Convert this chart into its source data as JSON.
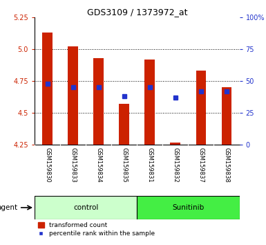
{
  "title": "GDS3109 / 1373972_at",
  "samples": [
    "GSM159830",
    "GSM159833",
    "GSM159834",
    "GSM159835",
    "GSM159831",
    "GSM159832",
    "GSM159837",
    "GSM159838"
  ],
  "bar_values": [
    5.13,
    5.02,
    4.93,
    4.57,
    4.92,
    4.27,
    4.83,
    4.7
  ],
  "bar_base": 4.25,
  "dot_values": [
    4.73,
    4.7,
    4.7,
    4.63,
    4.7,
    4.62,
    4.67,
    4.67
  ],
  "ylim_left": [
    4.25,
    5.25
  ],
  "ylim_right": [
    0,
    100
  ],
  "yticks_left": [
    4.25,
    4.5,
    4.75,
    5.0,
    5.25
  ],
  "yticks_right": [
    0,
    25,
    50,
    75,
    100
  ],
  "ytick_labels_right": [
    "0",
    "25",
    "50",
    "75",
    "100%"
  ],
  "grid_lines": [
    4.5,
    4.75,
    5.0
  ],
  "bar_color": "#cc2200",
  "dot_color": "#2233cc",
  "control_label": "control",
  "sunitinib_label": "Sunitinib",
  "control_indices": [
    0,
    1,
    2,
    3
  ],
  "sunitinib_indices": [
    4,
    5,
    6,
    7
  ],
  "control_bg": "#ccffcc",
  "sunitinib_bg": "#44ee44",
  "agent_label": "agent",
  "legend_bar": "transformed count",
  "legend_dot": "percentile rank within the sample",
  "xticklabel_bg": "#cccccc",
  "plot_bg": "#ffffff",
  "bar_width": 0.4
}
